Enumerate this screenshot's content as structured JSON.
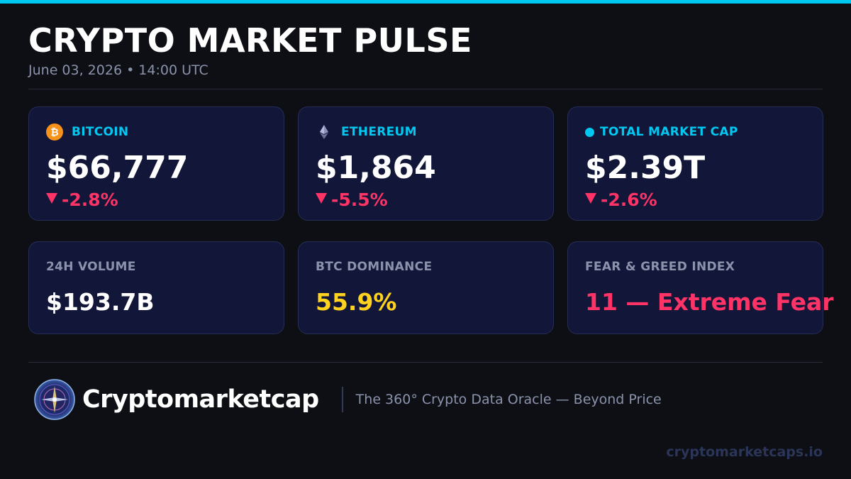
{
  "header": {
    "title": "CRYPTO MARKET PULSE",
    "subtitle": "June 03, 2026 • 14:00 UTC"
  },
  "cards": {
    "bitcoin": {
      "label": "BITCOIN",
      "icon": "bitcoin-icon",
      "price": "$66,777",
      "change": "-2.8%"
    },
    "ethereum": {
      "label": "ETHEREUM",
      "icon": "ethereum-icon",
      "price": "$1,864",
      "change": "-5.5%"
    },
    "total_market_cap": {
      "label": "TOTAL MARKET CAP",
      "icon": "dot-icon",
      "price": "$2.39T",
      "change": "-2.6%"
    }
  },
  "metrics": {
    "volume": {
      "label": "24H VOLUME",
      "value": "$193.7B"
    },
    "dominance": {
      "label": "BTC DOMINANCE",
      "value": "55.9%"
    },
    "fear_greed": {
      "label": "FEAR & GREED INDEX",
      "value": "11 — Extreme Fear"
    }
  },
  "footer": {
    "brand": "Cryptomarketcap",
    "tagline": "The 360° Crypto Data Oracle — Beyond Price",
    "site": "cryptomarketcaps.io"
  },
  "colors": {
    "accent": "#00c8f0",
    "negative": "#ff3366",
    "highlight": "#ffd21e",
    "background": "#0d0f14",
    "card": "#12173a"
  }
}
